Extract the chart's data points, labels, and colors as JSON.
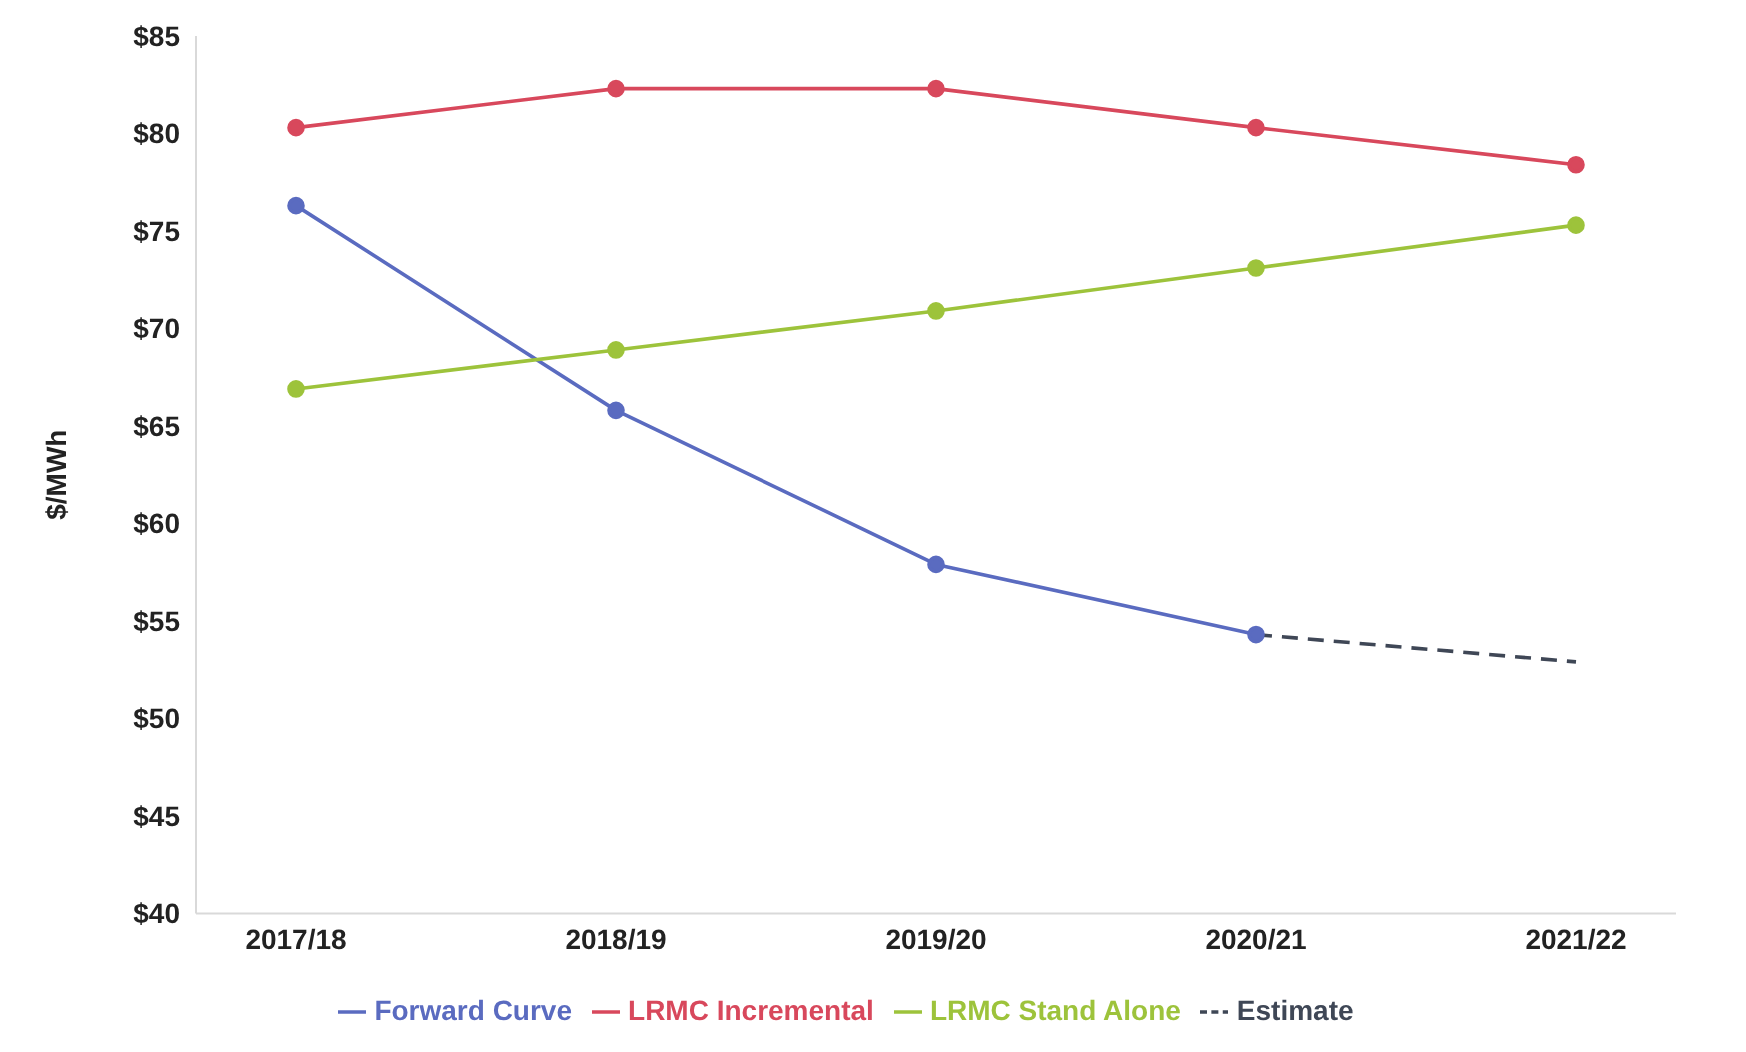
{
  "chart_data": {
    "type": "line",
    "ylabel": "$/MWh",
    "categories": [
      "2017/18",
      "2018/19",
      "2019/20",
      "2020/21",
      "2021/22"
    ],
    "series": [
      {
        "name": "Forward Curve",
        "color": "#5a6bc0",
        "values": [
          76.3,
          65.8,
          57.9,
          54.3,
          null
        ]
      },
      {
        "name": "LRMC Incremental",
        "color": "#d8485c",
        "values": [
          80.3,
          82.3,
          82.3,
          80.3,
          78.4
        ]
      },
      {
        "name": "LRMC Stand Alone",
        "color": "#9dc33b",
        "values": [
          66.9,
          68.9,
          70.9,
          73.1,
          75.3
        ]
      },
      {
        "name": "Estimate",
        "color": "#3f4756",
        "values": [
          null,
          null,
          null,
          54.3,
          52.9
        ],
        "marker": "none",
        "line_style": "dashed"
      }
    ],
    "ylim": [
      40,
      85
    ],
    "yticks": [
      {
        "value": 40,
        "label": "$40"
      },
      {
        "value": 45,
        "label": "$45"
      },
      {
        "value": 50,
        "label": "$50"
      },
      {
        "value": 55,
        "label": "$55"
      },
      {
        "value": 60,
        "label": "$60"
      },
      {
        "value": 65,
        "label": "$65"
      },
      {
        "value": 70,
        "label": "$70"
      },
      {
        "value": 75,
        "label": "$75"
      },
      {
        "value": 80,
        "label": "$80"
      },
      {
        "value": 85,
        "label": "$85"
      }
    ],
    "grid": false,
    "legend": "bottom",
    "marker": "circle",
    "line_style": "solid"
  }
}
